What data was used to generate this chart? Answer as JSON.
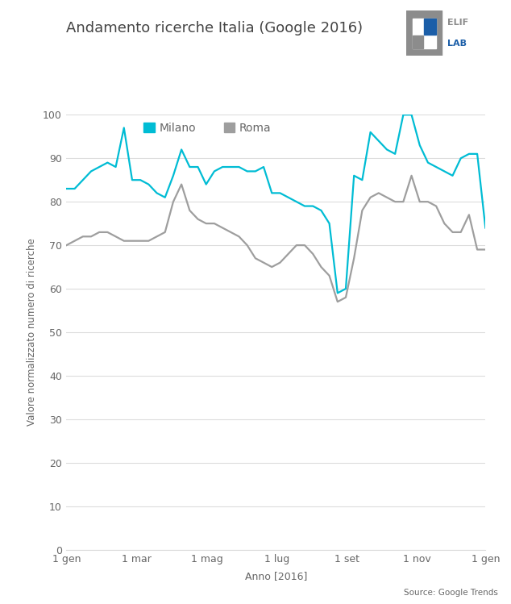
{
  "title": "Andamento ricerche Italia (Google 2016)",
  "ylabel": "Valore normalizzato numero di ricerche",
  "xlabel": "Anno [2016]",
  "source_text": "Source: Google Trends",
  "ylim": [
    0,
    100
  ],
  "yticks": [
    0,
    10,
    20,
    30,
    40,
    50,
    60,
    70,
    80,
    90,
    100
  ],
  "xtick_positions": [
    0,
    8.71,
    17.42,
    26.13,
    34.84,
    43.55,
    52
  ],
  "xtick_labels": [
    "1 gen",
    "1 mar",
    "1 mag",
    "1 lug",
    "1 set",
    "1 nov",
    "1 gen"
  ],
  "milano_color": "#00BCD4",
  "roma_color": "#9E9E9E",
  "background_color": "#FFFFFF",
  "grid_color": "#DCDCDC",
  "title_color": "#444444",
  "axis_color": "#666666",
  "milano_label": "Milano",
  "roma_label": "Roma",
  "logo_gray": "#8C8C8C",
  "logo_blue": "#1B5EA8",
  "milano_data": [
    83,
    83,
    85,
    87,
    88,
    89,
    88,
    97,
    85,
    85,
    84,
    82,
    81,
    86,
    92,
    88,
    88,
    84,
    87,
    88,
    88,
    88,
    87,
    87,
    88,
    82,
    82,
    81,
    80,
    79,
    79,
    78,
    75,
    59,
    60,
    86,
    85,
    96,
    94,
    92,
    91,
    100,
    100,
    93,
    89,
    88,
    87,
    86,
    90,
    91,
    91,
    74
  ],
  "roma_data": [
    70,
    71,
    72,
    72,
    73,
    73,
    72,
    71,
    71,
    71,
    71,
    72,
    73,
    80,
    84,
    78,
    76,
    75,
    75,
    74,
    73,
    72,
    70,
    67,
    66,
    65,
    66,
    68,
    70,
    70,
    68,
    65,
    63,
    57,
    58,
    67,
    78,
    81,
    82,
    81,
    80,
    80,
    86,
    80,
    80,
    79,
    75,
    73,
    73,
    77,
    69,
    69
  ]
}
